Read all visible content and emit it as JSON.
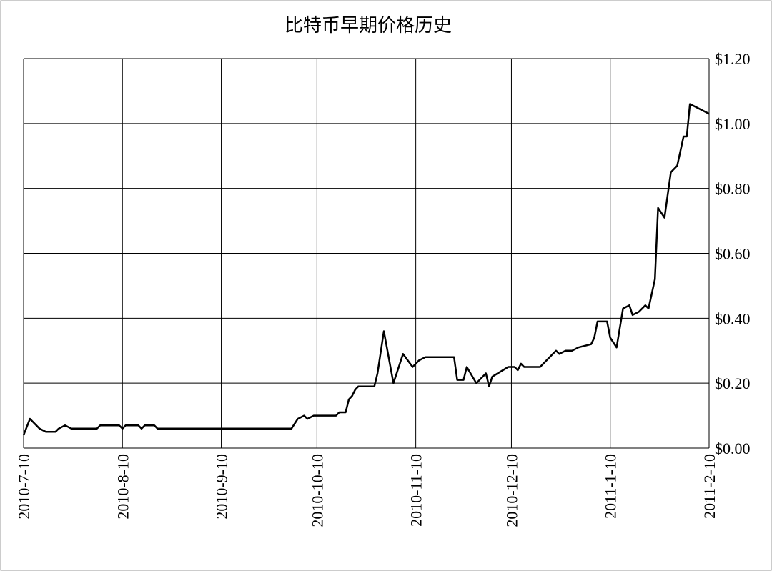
{
  "chart_data": {
    "type": "line",
    "title": "比特币早期价格历史",
    "x": [
      "2010-7-10",
      "2010-7-12",
      "2010-7-15",
      "2010-7-17",
      "2010-7-20",
      "2010-7-21",
      "2010-7-23",
      "2010-7-25",
      "2010-8-2",
      "2010-8-3",
      "2010-8-9",
      "2010-8-10",
      "2010-8-11",
      "2010-8-15",
      "2010-8-16",
      "2010-8-17",
      "2010-8-20",
      "2010-8-21",
      "2010-10-2",
      "2010-10-4",
      "2010-10-6",
      "2010-10-7",
      "2010-10-9",
      "2010-10-16",
      "2010-10-17",
      "2010-10-19",
      "2010-10-20",
      "2010-10-21",
      "2010-10-22",
      "2010-10-23",
      "2010-10-28",
      "2010-10-29",
      "2010-10-31",
      "2010-11-3",
      "2010-11-6",
      "2010-11-9",
      "2010-11-11",
      "2010-11-13",
      "2010-11-22",
      "2010-11-23",
      "2010-11-25",
      "2010-11-26",
      "2010-11-29",
      "2010-12-2",
      "2010-12-3",
      "2010-12-4",
      "2010-12-9",
      "2010-12-11",
      "2010-12-12",
      "2010-12-13",
      "2010-12-14",
      "2010-12-19",
      "2010-12-21",
      "2010-12-23",
      "2010-12-24",
      "2010-12-25",
      "2010-12-27",
      "2010-12-29",
      "2010-12-31",
      "2011-1-4",
      "2011-1-5",
      "2011-1-6",
      "2011-1-9",
      "2011-1-10",
      "2011-1-12",
      "2011-1-14",
      "2011-1-16",
      "2011-1-17",
      "2011-1-19",
      "2011-1-21",
      "2011-1-22",
      "2011-1-24",
      "2011-1-25",
      "2011-1-27",
      "2011-1-29",
      "2011-1-31",
      "2011-2-2",
      "2011-2-3",
      "2011-2-4",
      "2011-2-6",
      "2011-2-10"
    ],
    "series": [
      {
        "color": "#000000",
        "values": [
          0.04,
          0.09,
          0.06,
          0.05,
          0.05,
          0.06,
          0.07,
          0.06,
          0.06,
          0.07,
          0.07,
          0.06,
          0.07,
          0.07,
          0.06,
          0.07,
          0.07,
          0.06,
          0.06,
          0.09,
          0.1,
          0.09,
          0.1,
          0.1,
          0.11,
          0.11,
          0.15,
          0.16,
          0.18,
          0.19,
          0.19,
          0.23,
          0.36,
          0.2,
          0.29,
          0.25,
          0.27,
          0.28,
          0.28,
          0.21,
          0.21,
          0.25,
          0.2,
          0.23,
          0.19,
          0.22,
          0.25,
          0.25,
          0.24,
          0.26,
          0.25,
          0.25,
          0.27,
          0.29,
          0.3,
          0.29,
          0.3,
          0.3,
          0.31,
          0.32,
          0.34,
          0.39,
          0.39,
          0.34,
          0.31,
          0.43,
          0.44,
          0.41,
          0.42,
          0.44,
          0.43,
          0.52,
          0.74,
          0.71,
          0.85,
          0.87,
          0.96,
          0.96,
          1.06,
          1.05,
          1.03
        ]
      }
    ],
    "xlim": [
      "2010-7-10",
      "2011-2-10"
    ],
    "xticks": [
      "2010-7-10",
      "2010-8-10",
      "2010-9-10",
      "2010-10-10",
      "2010-11-10",
      "2010-12-10",
      "2011-1-10",
      "2011-2-10"
    ],
    "ylim": [
      0,
      1.2
    ],
    "yticks": [
      {
        "value": 0,
        "label": "$0.00"
      },
      {
        "value": 0.2,
        "label": "$0.20"
      },
      {
        "value": 0.4,
        "label": "$0.40"
      },
      {
        "value": 0.6,
        "label": "$0.60"
      },
      {
        "value": 0.8,
        "label": "$0.80"
      },
      {
        "value": 1.0,
        "label": "$1.00"
      },
      {
        "value": 1.2,
        "label": "$1.20"
      }
    ],
    "grid": true
  }
}
